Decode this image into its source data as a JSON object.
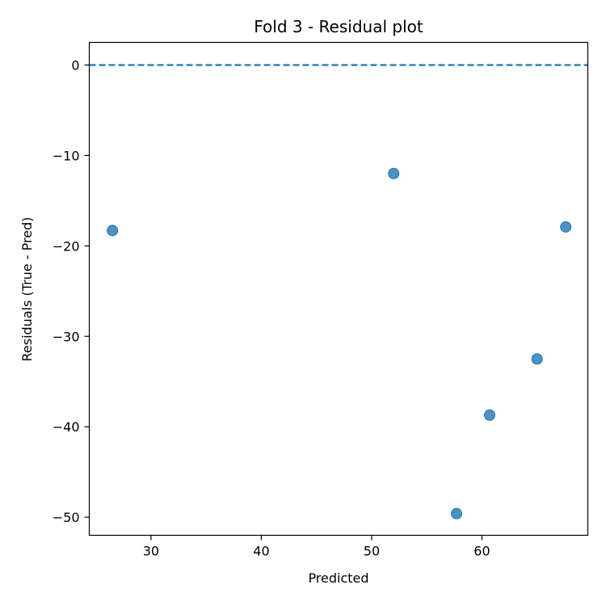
{
  "chart_data": {
    "type": "scatter",
    "title": "Fold 3 - Residual plot",
    "xlabel": "Predicted",
    "ylabel": "Residuals (True - Pred)",
    "xlim": [
      24.4,
      69.6
    ],
    "ylim": [
      -52,
      2.5
    ],
    "xticks": [
      30,
      40,
      50,
      60
    ],
    "xtick_labels": [
      "30",
      "40",
      "50",
      "60"
    ],
    "yticks": [
      0,
      -10,
      -20,
      -30,
      -40,
      -50
    ],
    "ytick_labels": [
      "0",
      "−10",
      "−20",
      "−30",
      "−40",
      "−50"
    ],
    "reference_line": {
      "y": 0,
      "style": "dashed",
      "color": "#1f77b4"
    },
    "point_color": "#1f77b4",
    "grid": false,
    "points": [
      {
        "x": 26.5,
        "y": -18.3
      },
      {
        "x": 52.0,
        "y": -12.0
      },
      {
        "x": 57.7,
        "y": -49.6
      },
      {
        "x": 60.7,
        "y": -38.7
      },
      {
        "x": 65.0,
        "y": -32.5
      },
      {
        "x": 67.6,
        "y": -17.9
      }
    ]
  }
}
